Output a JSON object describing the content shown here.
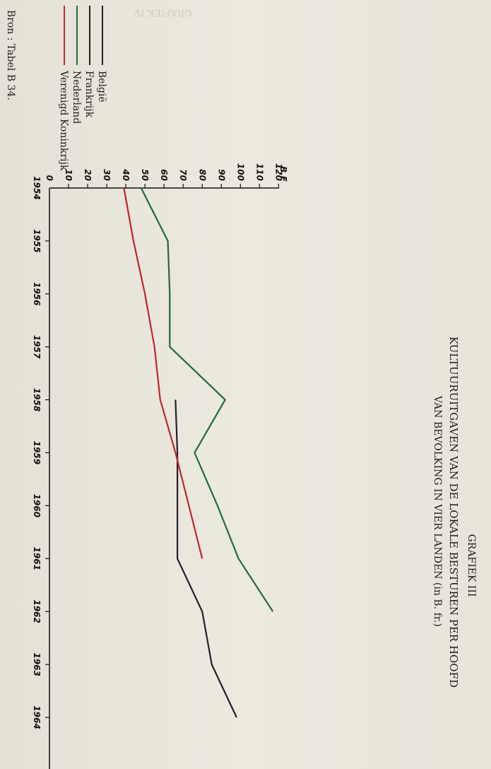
{
  "chart_data": {
    "type": "line",
    "title_label": "GRAFIEK III",
    "title": "KULTUURUITGAVEN VAN DE LOKALE BESTUREN PER HOOFD",
    "subtitle": "VAN BEVOLKING IN VIER LANDEN (in B. fr.)",
    "unit_label": "B.F",
    "source": "Bron : Tabel B 34.",
    "x": [
      "1954",
      "1955",
      "1956",
      "1957",
      "1958",
      "1959",
      "1960",
      "1961",
      "1962",
      "1963",
      "1964"
    ],
    "y_ticks": [
      "0",
      "10",
      "20",
      "30",
      "40",
      "50",
      "60",
      "70",
      "80",
      "90",
      "100",
      "110",
      "120"
    ],
    "ylim": [
      0,
      120
    ],
    "series": [
      {
        "name": "België",
        "color": "#2a1a2e",
        "x": [
          1958,
          1959,
          1960,
          1961,
          1962,
          1963,
          1964
        ],
        "values": [
          66,
          67,
          67,
          67,
          80,
          85,
          98
        ]
      },
      {
        "name": "Frankrijk",
        "color": "#2a1a2e",
        "x": [],
        "values": []
      },
      {
        "name": "Nederland",
        "color": "#1f6b33",
        "x": [
          1954,
          1955,
          1956,
          1957,
          1958,
          1959,
          1960,
          1961,
          1962
        ],
        "values": [
          48,
          62,
          63,
          63,
          92,
          76,
          88,
          99,
          117
        ]
      },
      {
        "name": "Verenigd Koninkrijk",
        "color": "#c0242c",
        "x": [
          1954,
          1955,
          1956,
          1957,
          1958,
          1959,
          1960,
          1961
        ],
        "values": [
          39,
          44,
          50,
          55,
          58,
          66,
          73,
          80
        ]
      }
    ],
    "grid": false,
    "legend_position": "top-left"
  }
}
